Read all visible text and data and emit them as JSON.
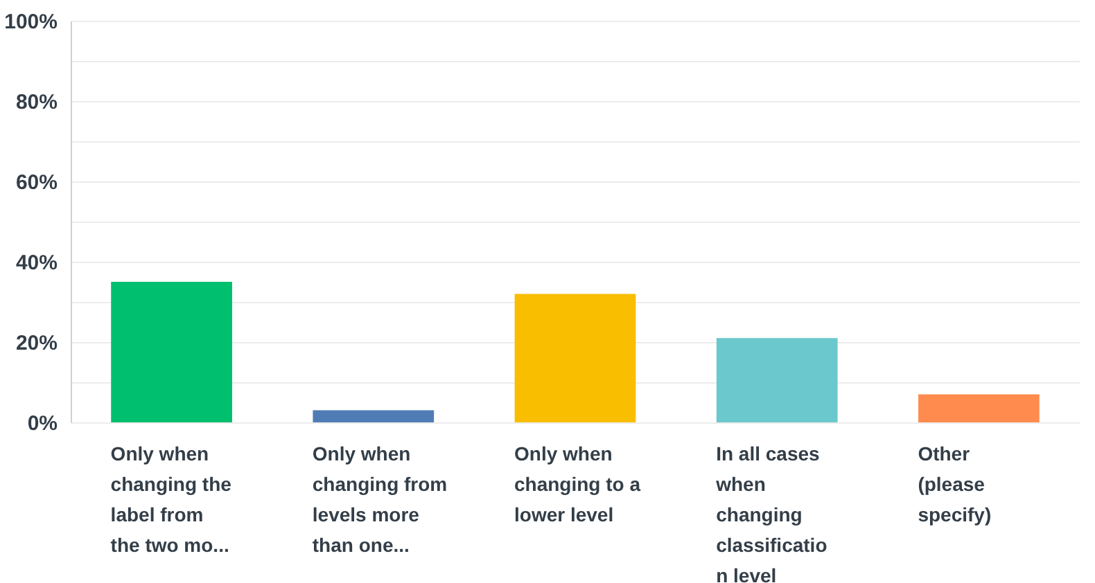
{
  "chart_data": {
    "type": "bar",
    "categories": [
      "Only when\nchanging the\nlabel from\nthe two mo...",
      "Only when\nchanging from\nlevels more\nthan one...",
      "Only when\nchanging to a\nlower level",
      "In all cases\nwhen\nchanging\nclassificatio\nn level",
      "Other\n(please\nspecify)"
    ],
    "values": [
      35,
      3,
      32,
      21,
      7
    ],
    "colors": [
      "#00bf6f",
      "#507cb6",
      "#f9be00",
      "#6bc8cd",
      "#ff8b4f"
    ],
    "ylim": [
      0,
      100
    ],
    "yticks": [
      {
        "value": 0,
        "label": "0%"
      },
      {
        "value": 10,
        "label": null
      },
      {
        "value": 20,
        "label": "20%"
      },
      {
        "value": 30,
        "label": null
      },
      {
        "value": 40,
        "label": "40%"
      },
      {
        "value": 50,
        "label": null
      },
      {
        "value": 60,
        "label": "60%"
      },
      {
        "value": 70,
        "label": null
      },
      {
        "value": 80,
        "label": "80%"
      },
      {
        "value": 90,
        "label": null
      },
      {
        "value": 100,
        "label": "100%"
      }
    ],
    "grid": true
  }
}
